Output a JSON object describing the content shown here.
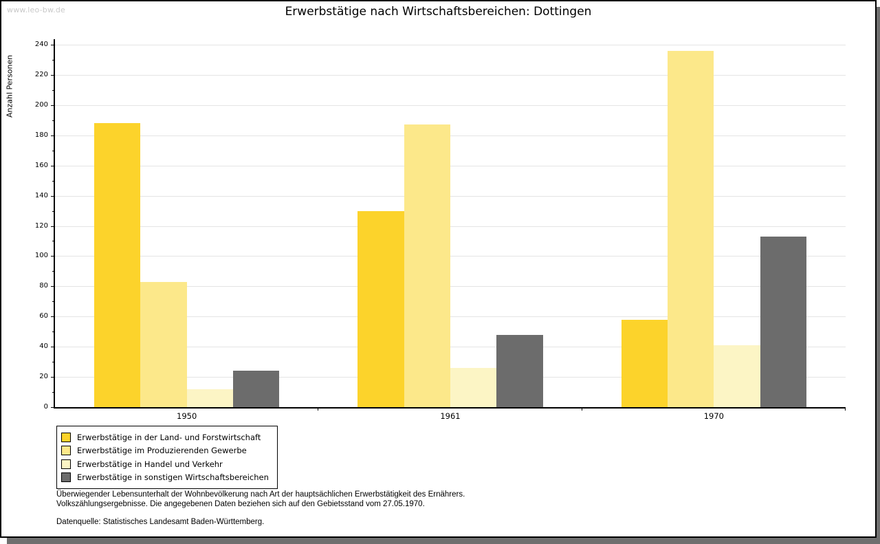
{
  "page": {
    "watermark": "www.leo-bw.de"
  },
  "chart_data": {
    "type": "bar",
    "title": "Erwerbstätige nach Wirtschaftsbereichen: Dottingen",
    "ylabel": "Anzahl Personen",
    "xlabel": "",
    "categories": [
      "1950",
      "1961",
      "1970"
    ],
    "series": [
      {
        "name": "Erwerbstätige in der Land- und Forstwirtschaft",
        "color": "#FCD32B",
        "values": [
          188,
          130,
          58
        ]
      },
      {
        "name": "Erwerbstätige im Produzierenden Gewerbe",
        "color": "#FCE88A",
        "values": [
          83,
          187,
          236
        ]
      },
      {
        "name": "Erwerbstätige in Handel und Verkehr",
        "color": "#FCF5C5",
        "values": [
          12,
          26,
          41
        ]
      },
      {
        "name": "Erwerbstätige in sonstigen Wirtschaftsbereichen",
        "color": "#6C6C6C",
        "values": [
          24,
          48,
          113
        ]
      }
    ],
    "ylim": [
      0,
      240
    ],
    "ytick_step": 20,
    "yminor_step": 10,
    "grid": true,
    "legend_position": "bottom-left",
    "colors": {
      "grid": "#E4E4E4",
      "axis": "#000000",
      "shadow": "#6F6F6F",
      "watermark": "#C9C9C9"
    }
  },
  "footnotes": {
    "line1": "Überwiegender Lebensunterhalt der Wohnbevölkerung nach Art der hauptsächlichen Erwerbstätigkeit des Ernährers.",
    "line2": "Volkszählungsergebnisse. Die angegebenen Daten beziehen sich auf den Gebietsstand vom 27.05.1970.",
    "source": "Datenquelle: Statistisches Landesamt Baden-Württemberg."
  }
}
